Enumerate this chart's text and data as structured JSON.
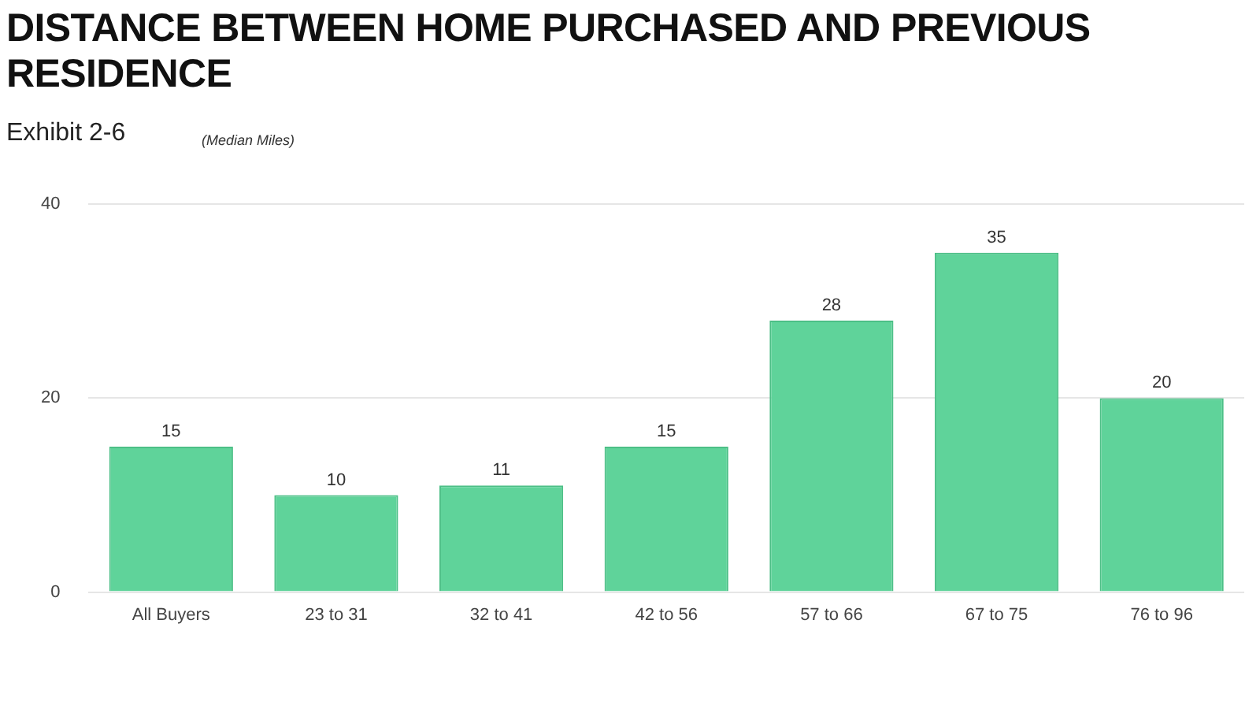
{
  "chart_data": {
    "type": "bar",
    "title": "DISTANCE BETWEEN HOME PURCHASED AND PREVIOUS RESIDENCE",
    "subtitle": "Exhibit 2-6",
    "annotations": [
      "(Median Miles)"
    ],
    "categories": [
      "All Buyers",
      "23 to 31",
      "32 to 41",
      "42 to 56",
      "57 to 66",
      "67 to 75",
      "76 to 96"
    ],
    "values": [
      15,
      10,
      11,
      15,
      28,
      35,
      20
    ],
    "color": "#5fd39a",
    "ylim": [
      0,
      40
    ],
    "yticks": [
      0,
      20,
      40
    ],
    "grid": "y",
    "data_labels": true
  }
}
